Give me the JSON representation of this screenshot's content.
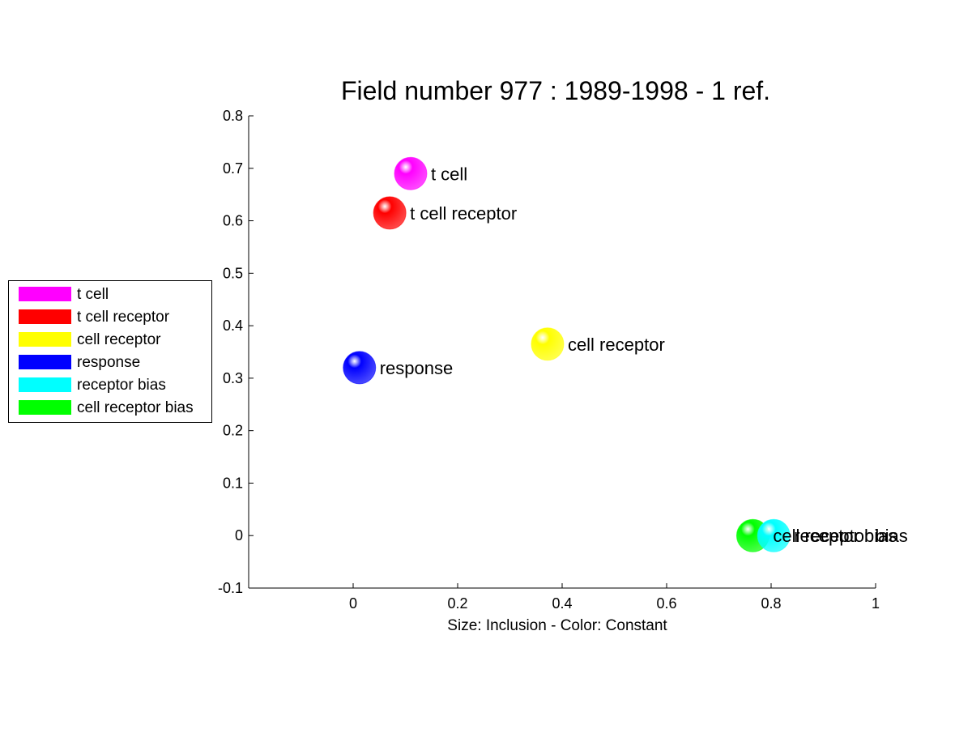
{
  "chart_data": {
    "type": "scatter",
    "title": "Field number 977 : 1989-1998  - 1 ref.",
    "xlabel": "Size: Inclusion - Color: Constant",
    "ylabel": "",
    "xlim": [
      -0.2,
      1.0
    ],
    "ylim": [
      -0.1,
      0.8
    ],
    "xticks": [
      "0",
      "0.2",
      "0.4",
      "0.6",
      "0.8",
      "1"
    ],
    "xtick_values": [
      0,
      0.2,
      0.4,
      0.6,
      0.8,
      1.0
    ],
    "yticks": [
      "-0.1",
      "0",
      "0.1",
      "0.2",
      "0.3",
      "0.4",
      "0.5",
      "0.6",
      "0.7",
      "0.8"
    ],
    "ytick_values": [
      -0.1,
      0,
      0.1,
      0.2,
      0.3,
      0.4,
      0.5,
      0.6,
      0.7,
      0.8
    ],
    "grid": false,
    "legend_position": "left",
    "points": [
      {
        "label": "t cell",
        "x": 0.11,
        "y": 0.69,
        "color": "#ff00ff"
      },
      {
        "label": "t cell receptor",
        "x": 0.07,
        "y": 0.615,
        "color": "#ff0000"
      },
      {
        "label": "cell receptor",
        "x": 0.372,
        "y": 0.365,
        "color": "#ffff00"
      },
      {
        "label": "response",
        "x": 0.012,
        "y": 0.32,
        "color": "#0000ff"
      },
      {
        "label": "receptor bias",
        "x": 0.805,
        "y": 0.0,
        "color": "#00ffff"
      },
      {
        "label": "cell receptor bias",
        "x": 0.765,
        "y": 0.0,
        "color": "#00ff00"
      }
    ]
  },
  "legend": {
    "items": [
      {
        "label": "t cell",
        "color": "#ff00ff"
      },
      {
        "label": "t cell receptor",
        "color": "#ff0000"
      },
      {
        "label": "cell receptor",
        "color": "#ffff00"
      },
      {
        "label": "response",
        "color": "#0000ff"
      },
      {
        "label": "receptor bias",
        "color": "#00ffff"
      },
      {
        "label": "cell receptor bias",
        "color": "#00ff00"
      }
    ]
  }
}
